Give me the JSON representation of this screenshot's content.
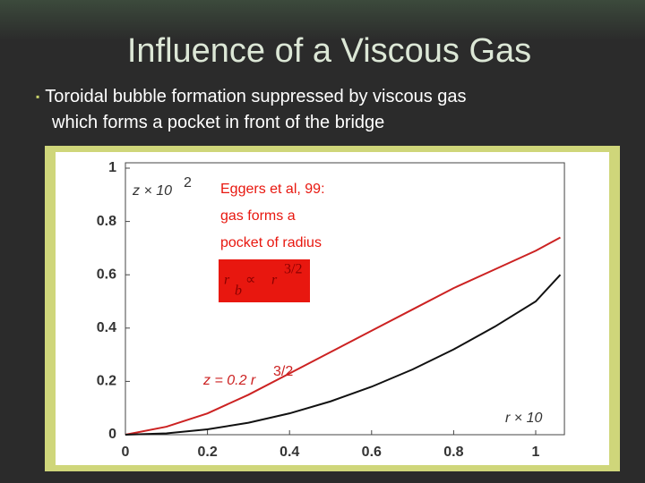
{
  "slide": {
    "title": "Influence of a Viscous Gas",
    "bullet_lines": [
      "Toroidal bubble formation suppressed by viscous gas",
      "which forms a pocket in front of the bridge"
    ]
  },
  "chart_data": {
    "type": "line",
    "xlabel": "r × 10",
    "ylabel": "z × 10",
    "ylabel_exponent": "2",
    "xlim": [
      0,
      1.07
    ],
    "ylim": [
      0,
      1
    ],
    "xticks": [
      0,
      0.2,
      0.4,
      0.6,
      0.8,
      1
    ],
    "yticks": [
      0,
      0.2,
      0.4,
      0.6,
      0.8,
      1
    ],
    "annotation_lines": [
      "Eggers et al, 99:",
      "gas forms a",
      "pocket of radius"
    ],
    "formula": {
      "base": "r",
      "subscript": "b",
      "relation": "∝",
      "rhs": "r",
      "exponent": "3/2"
    },
    "curve_label": {
      "text": "z = 0.2 r",
      "exponent": "3/2"
    },
    "series": [
      {
        "color": "#cc2222",
        "x": [
          0,
          0.1,
          0.2,
          0.3,
          0.4,
          0.5,
          0.6,
          0.7,
          0.8,
          0.9,
          1.0,
          1.06
        ],
        "values": [
          0,
          0.03,
          0.08,
          0.15,
          0.23,
          0.31,
          0.39,
          0.47,
          0.55,
          0.62,
          0.69,
          0.74
        ]
      },
      {
        "color": "#111111",
        "x": [
          0,
          0.1,
          0.2,
          0.3,
          0.4,
          0.5,
          0.6,
          0.7,
          0.8,
          0.9,
          1.0,
          1.06
        ],
        "values": [
          0,
          0.005,
          0.02,
          0.045,
          0.08,
          0.125,
          0.18,
          0.245,
          0.32,
          0.405,
          0.5,
          0.6
        ]
      }
    ]
  }
}
